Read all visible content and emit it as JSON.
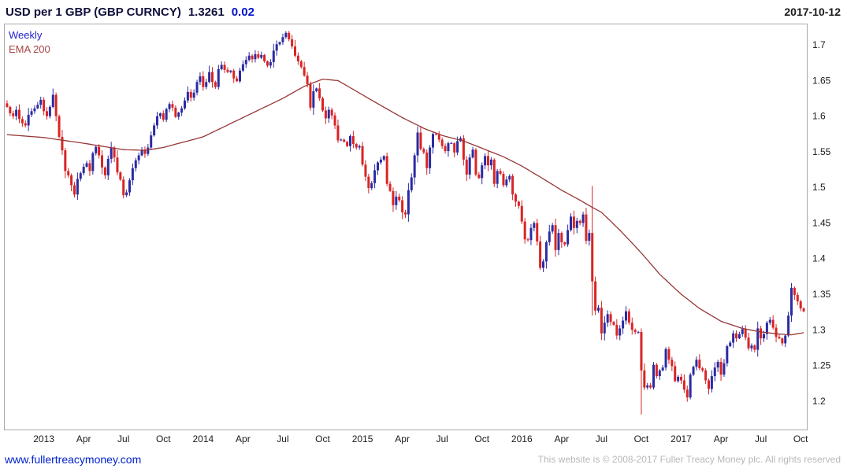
{
  "header": {
    "title": "USD per 1 GBP (GBP CURNCY)",
    "price": "1.3261",
    "change": "0.02",
    "date": "2017-10-12"
  },
  "legend": {
    "timeframe": "Weekly",
    "overlay": "EMA 200"
  },
  "footer": {
    "link": "www.fullertreacymoney.com",
    "copyright": "This website is © 2008-2017 Fuller Treacy Money plc. All rights reserved"
  },
  "colors": {
    "up_candle": "#2b2ba3",
    "down_candle": "#d92424",
    "ema_line": "#963636",
    "change_blue": "#0011cc",
    "axis_text": "#1a1a1a",
    "plot_border": "#aaaaaa"
  },
  "chart_data": {
    "type": "candlestick",
    "title": "USD per 1 GBP (GBP CURNCY)",
    "timeframe": "Weekly",
    "overlay": "EMA 200",
    "last_price": 1.3261,
    "change": 0.02,
    "date": "2017-10-12",
    "ylim": [
      1.16,
      1.73
    ],
    "yticks": [
      {
        "v": 1.7,
        "label": "1.7"
      },
      {
        "v": 1.65,
        "label": "1.65"
      },
      {
        "v": 1.6,
        "label": "1.6"
      },
      {
        "v": 1.55,
        "label": "1.55"
      },
      {
        "v": 1.5,
        "label": "1.5"
      },
      {
        "v": 1.45,
        "label": "1.45"
      },
      {
        "v": 1.4,
        "label": "1.4"
      },
      {
        "v": 1.35,
        "label": "1.35"
      },
      {
        "v": 1.3,
        "label": "1.3"
      },
      {
        "v": 1.25,
        "label": "1.25"
      },
      {
        "v": 1.2,
        "label": "1.2"
      }
    ],
    "xticks": [
      {
        "i": 12,
        "label": "2013"
      },
      {
        "i": 25,
        "label": "Apr"
      },
      {
        "i": 38,
        "label": "Jul"
      },
      {
        "i": 51,
        "label": "Oct"
      },
      {
        "i": 64,
        "label": "2014"
      },
      {
        "i": 77,
        "label": "Apr"
      },
      {
        "i": 90,
        "label": "Jul"
      },
      {
        "i": 103,
        "label": "Oct"
      },
      {
        "i": 116,
        "label": "2015"
      },
      {
        "i": 129,
        "label": "Apr"
      },
      {
        "i": 142,
        "label": "Jul"
      },
      {
        "i": 155,
        "label": "Oct"
      },
      {
        "i": 168,
        "label": "2016"
      },
      {
        "i": 181,
        "label": "Apr"
      },
      {
        "i": 194,
        "label": "Jul"
      },
      {
        "i": 207,
        "label": "Oct"
      },
      {
        "i": 220,
        "label": "2017"
      },
      {
        "i": 233,
        "label": "Apr"
      },
      {
        "i": 246,
        "label": "Jul"
      },
      {
        "i": 259,
        "label": "Oct"
      }
    ],
    "first_open": 1.618,
    "closes": [
      1.613,
      1.604,
      1.6,
      1.609,
      1.596,
      1.59,
      1.587,
      1.602,
      1.607,
      1.611,
      1.616,
      1.623,
      1.607,
      1.6,
      1.613,
      1.63,
      1.6,
      1.571,
      1.552,
      1.523,
      1.517,
      1.503,
      1.49,
      1.512,
      1.52,
      1.529,
      1.534,
      1.523,
      1.548,
      1.557,
      1.545,
      1.528,
      1.517,
      1.54,
      1.556,
      1.542,
      1.521,
      1.511,
      1.489,
      1.493,
      1.51,
      1.527,
      1.538,
      1.545,
      1.553,
      1.547,
      1.556,
      1.573,
      1.587,
      1.6,
      1.604,
      1.595,
      1.61,
      1.617,
      1.612,
      1.599,
      1.605,
      1.611,
      1.622,
      1.634,
      1.626,
      1.633,
      1.648,
      1.656,
      1.641,
      1.648,
      1.662,
      1.648,
      1.641,
      1.666,
      1.672,
      1.665,
      1.662,
      1.664,
      1.653,
      1.649,
      1.664,
      1.673,
      1.679,
      1.685,
      1.68,
      1.687,
      1.682,
      1.686,
      1.677,
      1.671,
      1.676,
      1.692,
      1.701,
      1.704,
      1.711,
      1.717,
      1.708,
      1.698,
      1.685,
      1.677,
      1.669,
      1.657,
      1.645,
      1.612,
      1.635,
      1.639,
      1.625,
      1.608,
      1.597,
      1.609,
      1.601,
      1.587,
      1.566,
      1.567,
      1.564,
      1.558,
      1.572,
      1.561,
      1.556,
      1.558,
      1.532,
      1.515,
      1.499,
      1.506,
      1.524,
      1.535,
      1.539,
      1.544,
      1.505,
      1.495,
      1.475,
      1.487,
      1.482,
      1.465,
      1.462,
      1.496,
      1.514,
      1.545,
      1.577,
      1.554,
      1.549,
      1.527,
      1.556,
      1.575,
      1.574,
      1.567,
      1.558,
      1.551,
      1.562,
      1.562,
      1.549,
      1.565,
      1.569,
      1.539,
      1.518,
      1.542,
      1.553,
      1.518,
      1.513,
      1.531,
      1.544,
      1.531,
      1.539,
      1.505,
      1.523,
      1.519,
      1.503,
      1.511,
      1.516,
      1.49,
      1.48,
      1.474,
      1.452,
      1.427,
      1.426,
      1.443,
      1.45,
      1.424,
      1.387,
      1.396,
      1.423,
      1.438,
      1.447,
      1.412,
      1.436,
      1.423,
      1.42,
      1.44,
      1.459,
      1.443,
      1.453,
      1.45,
      1.462,
      1.425,
      1.436,
      1.368,
      1.327,
      1.331,
      1.295,
      1.31,
      1.322,
      1.311,
      1.307,
      1.292,
      1.302,
      1.313,
      1.326,
      1.31,
      1.3,
      1.297,
      1.297,
      1.243,
      1.219,
      1.222,
      1.219,
      1.251,
      1.235,
      1.243,
      1.247,
      1.273,
      1.258,
      1.249,
      1.228,
      1.234,
      1.229,
      1.216,
      1.205,
      1.237,
      1.248,
      1.258,
      1.246,
      1.243,
      1.229,
      1.217,
      1.235,
      1.247,
      1.255,
      1.237,
      1.253,
      1.277,
      1.282,
      1.295,
      1.288,
      1.294,
      1.301,
      1.289,
      1.274,
      1.278,
      1.272,
      1.302,
      1.288,
      1.294,
      1.31,
      1.314,
      1.303,
      1.29,
      1.288,
      1.281,
      1.292,
      1.32,
      1.359,
      1.349,
      1.34,
      1.33,
      1.326
    ],
    "wick_overrides": {
      "91": {
        "high": 1.7195
      },
      "130": {
        "low": 1.457
      },
      "174": {
        "low": 1.384
      },
      "191": {
        "high": 1.502,
        "low": 1.32
      },
      "207": {
        "high": 1.302,
        "low": 1.181
      },
      "222": {
        "low": 1.199
      }
    },
    "ema_anchors": [
      [
        0,
        1.574
      ],
      [
        12,
        1.57
      ],
      [
        25,
        1.562
      ],
      [
        38,
        1.553
      ],
      [
        45,
        1.552
      ],
      [
        51,
        1.556
      ],
      [
        64,
        1.571
      ],
      [
        77,
        1.598
      ],
      [
        90,
        1.625
      ],
      [
        97,
        1.642
      ],
      [
        103,
        1.652
      ],
      [
        108,
        1.65
      ],
      [
        116,
        1.63
      ],
      [
        122,
        1.615
      ],
      [
        129,
        1.598
      ],
      [
        136,
        1.583
      ],
      [
        142,
        1.573
      ],
      [
        149,
        1.565
      ],
      [
        155,
        1.555
      ],
      [
        162,
        1.543
      ],
      [
        168,
        1.53
      ],
      [
        175,
        1.512
      ],
      [
        181,
        1.496
      ],
      [
        187,
        1.482
      ],
      [
        191,
        1.472
      ],
      [
        194,
        1.465
      ],
      [
        200,
        1.44
      ],
      [
        207,
        1.408
      ],
      [
        213,
        1.378
      ],
      [
        220,
        1.35
      ],
      [
        226,
        1.33
      ],
      [
        233,
        1.312
      ],
      [
        240,
        1.302
      ],
      [
        246,
        1.297
      ],
      [
        252,
        1.294
      ],
      [
        256,
        1.293
      ],
      [
        260,
        1.296
      ]
    ]
  }
}
